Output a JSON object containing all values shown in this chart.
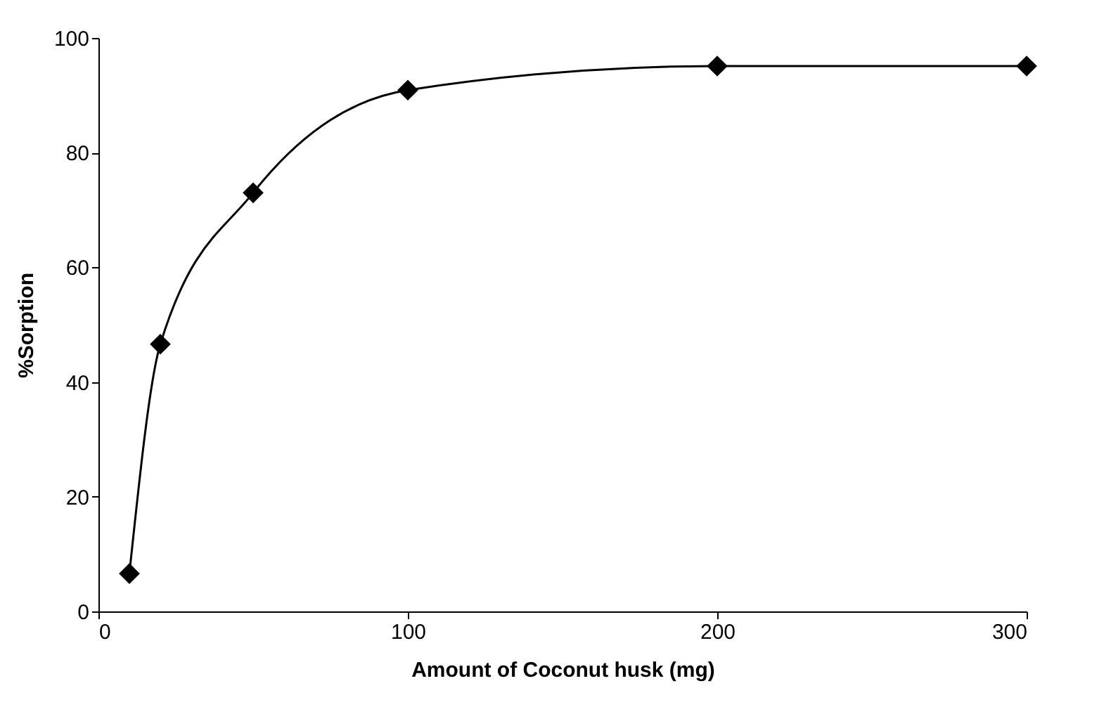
{
  "chart_data": {
    "type": "line",
    "xlabel": "Amount of Coconut husk  (mg)",
    "ylabel": "%Sorption",
    "x": [
      10,
      20,
      50,
      100,
      200,
      300
    ],
    "series": [
      {
        "color": "#000000",
        "values": [
          6.6,
          46.6,
          73,
          90.9,
          95.1,
          95.1
        ]
      }
    ],
    "xlim": [
      0,
      300
    ],
    "xticks": [
      0,
      100,
      200,
      300
    ],
    "ylim": [
      0,
      100
    ],
    "yticks": [
      0,
      20,
      40,
      60,
      80,
      100
    ],
    "marker": "diamond",
    "line_style": "solid",
    "grid": false
  }
}
